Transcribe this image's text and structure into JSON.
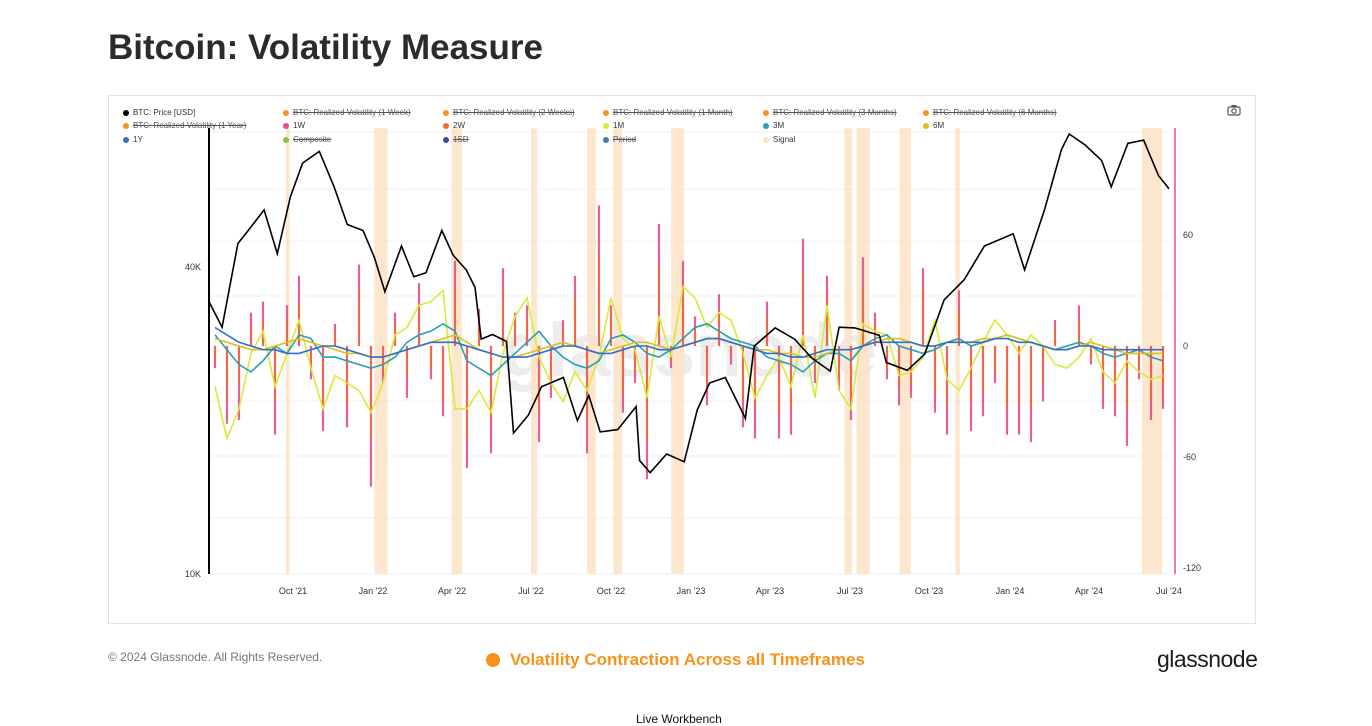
{
  "title": "Bitcoin: Volatility Measure",
  "footer": {
    "copyright": "© 2024 Glassnode. All Rights Reserved.",
    "caption": "Volatility Contraction Across all Timeframes",
    "brand": "glassnode",
    "bottom_text": "Live Workbench"
  },
  "watermark": "glassnode",
  "legend": [
    {
      "label": "BTC: Price [USD]",
      "color": "#000000",
      "active": true
    },
    {
      "label": "BTC: Realized Volatility (1 Week)",
      "color": "#f7931a",
      "active": false
    },
    {
      "label": "BTC: Realized Volatility (2 Weeks)",
      "color": "#f7931a",
      "active": false
    },
    {
      "label": "BTC: Realized Volatility (1 Month)",
      "color": "#f7931a",
      "active": false
    },
    {
      "label": "BTC: Realized Volatility (3 Months)",
      "color": "#f7931a",
      "active": false
    },
    {
      "label": "BTC: Realized Volatility (6 Months)",
      "color": "#f7931a",
      "active": false
    },
    {
      "label": "BTC: Realized Volatility (1 Year)",
      "color": "#f7931a",
      "active": false
    },
    {
      "label": "1W",
      "color": "#e0508a",
      "active": true
    },
    {
      "label": "2W",
      "color": "#f26a2e",
      "active": true
    },
    {
      "label": "1M",
      "color": "#d8ea3a",
      "active": true
    },
    {
      "label": "3M",
      "color": "#2a9fb5",
      "active": true
    },
    {
      "label": "6M",
      "color": "#e0c020",
      "active": true
    },
    {
      "label": "1Y",
      "color": "#2f6fc8",
      "active": true
    },
    {
      "label": "Composite",
      "color": "#8bc34a",
      "active": false
    },
    {
      "label": "1SD",
      "color": "#3a4a9a",
      "active": false
    },
    {
      "label": "Period",
      "color": "#4a7aa8",
      "active": false
    },
    {
      "label": "Signal",
      "color": "#fde2c6",
      "active": true
    }
  ],
  "chart_data": {
    "type": "line",
    "x_ticks": [
      "Oct '21",
      "Jan '22",
      "Apr '22",
      "Jul '22",
      "Oct '22",
      "Jan '23",
      "Apr '23",
      "Jul '23",
      "Oct '23",
      "Jan '24",
      "Apr '24",
      "Jul '24"
    ],
    "x_range": [
      "2021-07-05",
      "2024-07-06"
    ],
    "y_left": {
      "scale": "log",
      "ticks": [
        "40K",
        "10K"
      ],
      "range": [
        10000,
        75000
      ]
    },
    "y_right": {
      "ticks": [
        "60",
        "0",
        "-60",
        "-120"
      ],
      "range": [
        -120,
        120
      ]
    },
    "grid": true,
    "price_series": {
      "name": "BTC: Price [USD]",
      "dates": [
        "2021-07-05",
        "2021-07-20",
        "2021-08-07",
        "2021-08-20",
        "2021-09-06",
        "2021-09-21",
        "2021-10-06",
        "2021-10-20",
        "2021-11-08",
        "2021-11-25",
        "2021-12-10",
        "2021-12-28",
        "2022-01-10",
        "2022-01-22",
        "2022-02-10",
        "2022-02-24",
        "2022-03-10",
        "2022-03-28",
        "2022-04-10",
        "2022-04-25",
        "2022-05-05",
        "2022-05-12",
        "2022-05-25",
        "2022-06-10",
        "2022-06-18",
        "2022-07-05",
        "2022-07-20",
        "2022-08-14",
        "2022-08-30",
        "2022-09-12",
        "2022-09-25",
        "2022-10-15",
        "2022-11-05",
        "2022-11-09",
        "2022-11-21",
        "2022-12-10",
        "2022-12-30",
        "2023-01-14",
        "2023-01-28",
        "2023-02-15",
        "2023-03-10",
        "2023-03-20",
        "2023-04-13",
        "2023-05-05",
        "2023-05-25",
        "2023-06-15",
        "2023-06-25",
        "2023-07-13",
        "2023-08-10",
        "2023-08-18",
        "2023-09-11",
        "2023-10-01",
        "2023-10-23",
        "2023-11-15",
        "2023-12-08",
        "2024-01-10",
        "2024-01-23",
        "2024-02-15",
        "2024-03-05",
        "2024-03-14",
        "2024-04-01",
        "2024-04-20",
        "2024-05-01",
        "2024-05-20",
        "2024-06-07",
        "2024-06-24",
        "2024-07-06"
      ],
      "values": [
        34200,
        30500,
        44500,
        47500,
        51800,
        42500,
        55000,
        64000,
        67500,
        57500,
        48500,
        47200,
        41800,
        35800,
        44000,
        38300,
        39000,
        47200,
        42200,
        39500,
        36500,
        28900,
        29500,
        28600,
        18900,
        20500,
        23300,
        24300,
        20000,
        22400,
        19000,
        19200,
        21300,
        16700,
        15800,
        17200,
        16600,
        21000,
        23700,
        24300,
        20200,
        28000,
        30400,
        28900,
        26500,
        25000,
        30500,
        30400,
        29400,
        26000,
        25100,
        27000,
        34500,
        37800,
        44000,
        46500,
        39500,
        52000,
        68000,
        73000,
        69500,
        64800,
        57500,
        70000,
        71000,
        60500,
        57000
      ]
    },
    "volatility_series": [
      {
        "name": "1W",
        "color": "#e0508a",
        "values": [
          -12,
          -42,
          -40,
          18,
          24,
          -48,
          22,
          38,
          -18,
          -46,
          12,
          -44,
          44,
          -76,
          -20,
          18,
          -28,
          34,
          -18,
          -38,
          46,
          -66,
          20,
          -58,
          42,
          18,
          22,
          -52,
          -28,
          14,
          38,
          -58,
          76,
          22,
          -36,
          -20,
          -72,
          66,
          -12,
          46,
          16,
          -32,
          28,
          -10,
          -44,
          -50,
          24,
          -50,
          -48,
          58,
          -20,
          38,
          -24,
          -40,
          48,
          18,
          -18,
          -32,
          -28,
          42,
          -36,
          -48,
          30,
          -46,
          -38,
          -20,
          -48,
          -48,
          -52,
          -30,
          14,
          0,
          22,
          -10,
          -34,
          -38,
          -54,
          -18,
          -40,
          -34
        ]
      },
      {
        "name": "2W",
        "color": "#f26a2e",
        "values": [
          -8,
          -28,
          -20,
          10,
          14,
          -30,
          14,
          24,
          -12,
          -34,
          8,
          -32,
          30,
          -50,
          -14,
          12,
          -18,
          22,
          -12,
          -28,
          30,
          -50,
          12,
          -40,
          30,
          12,
          14,
          -36,
          -20,
          10,
          26,
          -40,
          50,
          16,
          -26,
          -14,
          -50,
          44,
          -8,
          30,
          10,
          -22,
          18,
          -6,
          -30,
          -34,
          16,
          -36,
          -34,
          40,
          -14,
          26,
          -16,
          -28,
          32,
          12,
          -12,
          -22,
          -20,
          30,
          -24,
          -32,
          20,
          -30,
          -26,
          -14,
          -34,
          -32,
          -36,
          -20,
          10,
          0,
          14,
          -8,
          -24,
          -28,
          -36,
          -12,
          -28,
          -22
        ]
      },
      {
        "name": "1M",
        "color": "#d8ea3a",
        "values": [
          -22,
          -50,
          -34,
          -4,
          8,
          -22,
          -4,
          14,
          -12,
          -34,
          -16,
          -20,
          -24,
          -36,
          -20,
          6,
          10,
          22,
          24,
          30,
          -34,
          -34,
          -24,
          -36,
          -4,
          16,
          26,
          -6,
          -20,
          -30,
          -14,
          -24,
          -6,
          26,
          4,
          -2,
          -28,
          16,
          -6,
          32,
          26,
          10,
          18,
          14,
          -4,
          -28,
          -16,
          -6,
          -22,
          6,
          -28,
          22,
          -24,
          -34,
          12,
          8,
          6,
          -16,
          -14,
          -6,
          14,
          -18,
          -24,
          -12,
          2,
          14,
          6,
          -4,
          6,
          0,
          -10,
          -12,
          -6,
          4,
          -14,
          -20,
          -8,
          -14,
          -18,
          -16
        ]
      },
      {
        "name": "3M",
        "color": "#2a9fb5",
        "values": [
          6,
          -2,
          -10,
          -14,
          -8,
          0,
          -4,
          6,
          4,
          -6,
          -6,
          -8,
          -10,
          -12,
          -10,
          -6,
          2,
          6,
          8,
          12,
          8,
          -8,
          -12,
          -16,
          -10,
          -4,
          2,
          8,
          0,
          -6,
          -10,
          -12,
          -8,
          4,
          6,
          2,
          -4,
          -6,
          -2,
          4,
          10,
          12,
          8,
          4,
          2,
          0,
          -6,
          -8,
          -10,
          -14,
          -8,
          -4,
          -4,
          -8,
          0,
          4,
          6,
          0,
          -2,
          -4,
          -2,
          2,
          4,
          0,
          2,
          4,
          6,
          4,
          2,
          0,
          -2,
          0,
          2,
          0,
          -4,
          -6,
          -4,
          -2,
          -6,
          -8
        ]
      },
      {
        "name": "6M",
        "color": "#e0c020",
        "values": [
          4,
          2,
          0,
          -2,
          -2,
          0,
          2,
          4,
          2,
          0,
          -2,
          -4,
          -4,
          -6,
          -6,
          -4,
          -2,
          0,
          2,
          4,
          6,
          2,
          -2,
          -4,
          -6,
          -6,
          -4,
          -2,
          0,
          2,
          0,
          -2,
          -4,
          -2,
          0,
          2,
          2,
          0,
          -2,
          0,
          2,
          4,
          4,
          2,
          0,
          -2,
          -2,
          -4,
          -4,
          -6,
          -6,
          -4,
          -2,
          -2,
          0,
          2,
          4,
          4,
          2,
          0,
          0,
          2,
          2,
          2,
          4,
          4,
          6,
          4,
          2,
          0,
          -2,
          -2,
          0,
          2,
          0,
          -2,
          -4,
          -4,
          -4,
          -4
        ]
      },
      {
        "name": "1Y",
        "color": "#2f6fc8",
        "values": [
          10,
          6,
          2,
          0,
          -2,
          -2,
          -4,
          -4,
          -2,
          0,
          0,
          -2,
          -4,
          -6,
          -6,
          -4,
          -2,
          0,
          2,
          2,
          2,
          0,
          -2,
          -4,
          -6,
          -6,
          -6,
          -4,
          -2,
          0,
          0,
          -2,
          -4,
          -4,
          -2,
          0,
          0,
          -2,
          -2,
          0,
          2,
          4,
          4,
          2,
          0,
          -2,
          -4,
          -4,
          -6,
          -6,
          -4,
          -2,
          -2,
          -2,
          0,
          2,
          2,
          2,
          2,
          0,
          0,
          2,
          2,
          2,
          2,
          4,
          4,
          2,
          2,
          0,
          -2,
          -2,
          0,
          0,
          -2,
          -2,
          -2,
          -2,
          -2,
          -2
        ]
      }
    ],
    "signal_periods": [
      [
        "2021-10-01",
        "2021-10-05"
      ],
      [
        "2022-01-10",
        "2022-01-25"
      ],
      [
        "2022-04-08",
        "2022-04-20"
      ],
      [
        "2022-07-08",
        "2022-07-15"
      ],
      [
        "2022-09-10",
        "2022-09-20"
      ],
      [
        "2022-10-10",
        "2022-10-20"
      ],
      [
        "2022-12-15",
        "2022-12-30"
      ],
      [
        "2023-07-01",
        "2023-07-10"
      ],
      [
        "2023-07-15",
        "2023-07-30"
      ],
      [
        "2023-09-02",
        "2023-09-15"
      ],
      [
        "2023-11-05",
        "2023-11-10"
      ],
      [
        "2024-06-05",
        "2024-06-28"
      ]
    ]
  }
}
